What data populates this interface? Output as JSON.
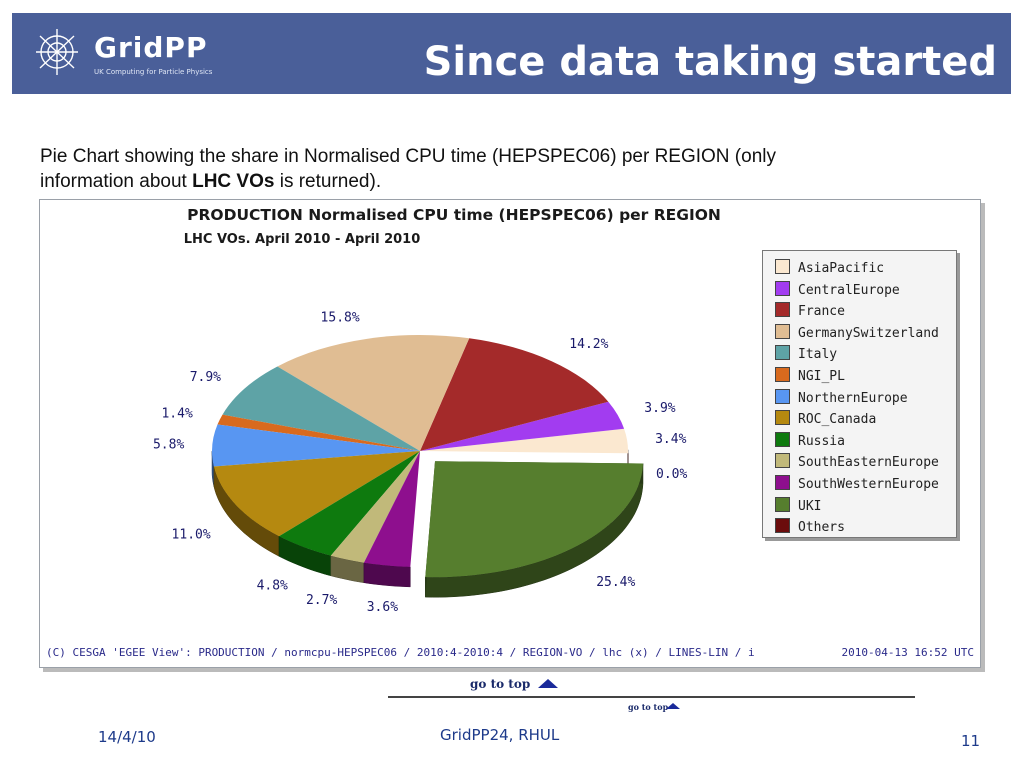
{
  "header": {
    "logo_text": "GridPP",
    "logo_subtitle": "UK Computing for Particle Physics",
    "title": "Since data taking started"
  },
  "caption": {
    "line1": "Pie Chart showing the share in Normalised CPU time (HEPSPEC06) per REGION (only",
    "line2_prefix": "information about ",
    "line2_bold": "LHC VOs",
    "line2_suffix": " is returned)."
  },
  "chart_data": {
    "type": "pie",
    "title": "PRODUCTION Normalised CPU time (HEPSPEC06) per REGION",
    "subtitle": "LHC VOs. April 2010 - April 2010",
    "categories": [
      "AsiaPacific",
      "CentralEurope",
      "France",
      "GermanySwitzerland",
      "Italy",
      "NGI_PL",
      "NorthernEurope",
      "ROC_Canada",
      "Russia",
      "SouthEasternEurope",
      "SouthWesternEurope",
      "UKI",
      "Others"
    ],
    "values": [
      3.4,
      3.9,
      14.2,
      15.8,
      7.9,
      1.4,
      5.8,
      11.0,
      4.8,
      2.7,
      3.6,
      25.4,
      0.0
    ],
    "labels": [
      "3.4%",
      "3.9%",
      "14.2%",
      "15.8%",
      "7.9%",
      "1.4%",
      "5.8%",
      "11.0%",
      "4.8%",
      "2.7%",
      "3.6%",
      "25.4%",
      "0.0%"
    ],
    "colors": [
      "#fbe8d0",
      "#a23cf0",
      "#a42a2a",
      "#e0bd93",
      "#5ea3a6",
      "#d86a1e",
      "#5896f2",
      "#b58910",
      "#0e7a0e",
      "#c1b97a",
      "#8e0f8e",
      "#567e2e",
      "#6b0c0c"
    ],
    "exploded": "UKI",
    "legend_position": "right"
  },
  "chart_footer": {
    "source": "(C) CESGA 'EGEE View': PRODUCTION / normcpu-HEPSPEC06 / 2010:4-2010:4 / REGION-VO / lhc (x) / LINES-LIN / i",
    "timestamp": "2010-04-13 16:52 UTC"
  },
  "navigation": {
    "go_to_top": "go to top",
    "go_to_top_small": "go to top"
  },
  "footer": {
    "date": "14/4/10",
    "event": "GridPP24, RHUL",
    "page": "11"
  }
}
